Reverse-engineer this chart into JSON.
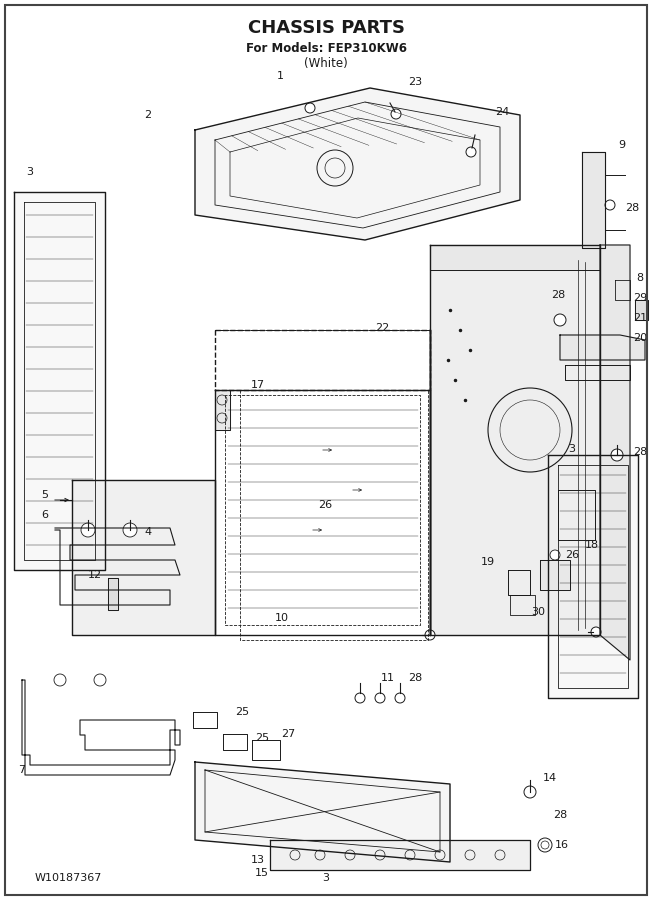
{
  "title": "CHASSIS PARTS",
  "subtitle1": "For Models: FEP310KW6",
  "subtitle2": "(White)",
  "footer_left": "W10187367",
  "footer_center": "3",
  "bg_color": "#ffffff",
  "line_color": "#1a1a1a",
  "title_fontsize": 13,
  "subtitle_fontsize": 8.5,
  "label_fontsize": 8,
  "footer_fontsize": 8
}
